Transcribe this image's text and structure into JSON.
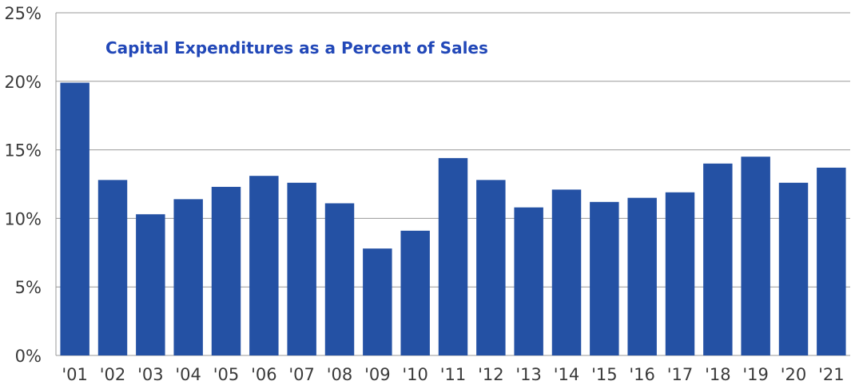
{
  "chart_data": {
    "type": "bar",
    "title": "Capital Expenditures as a Percent of Sales",
    "categories": [
      "'01",
      "'02",
      "'03",
      "'04",
      "'05",
      "'06",
      "'07",
      "'08",
      "'09",
      "'10",
      "'11",
      "'12",
      "'13",
      "'14",
      "'15",
      "'16",
      "'17",
      "'18",
      "'19",
      "'20",
      "'21"
    ],
    "values": [
      19.9,
      12.8,
      10.3,
      11.4,
      12.3,
      13.1,
      12.6,
      11.1,
      7.8,
      9.1,
      14.4,
      12.8,
      10.8,
      12.1,
      11.2,
      11.5,
      11.9,
      14.0,
      14.5,
      12.6,
      13.7
    ],
    "ylim": [
      0,
      25
    ],
    "yticks": [
      0,
      5,
      10,
      15,
      20,
      25
    ],
    "ytick_labels": [
      "0%",
      "5%",
      "10%",
      "15%",
      "20%",
      "25%"
    ],
    "xlabel": "",
    "ylabel": "",
    "grid": true,
    "legend": "none",
    "bar_color": "#2451a4",
    "title_color": "#2248b8",
    "grid_color": "#999999"
  }
}
